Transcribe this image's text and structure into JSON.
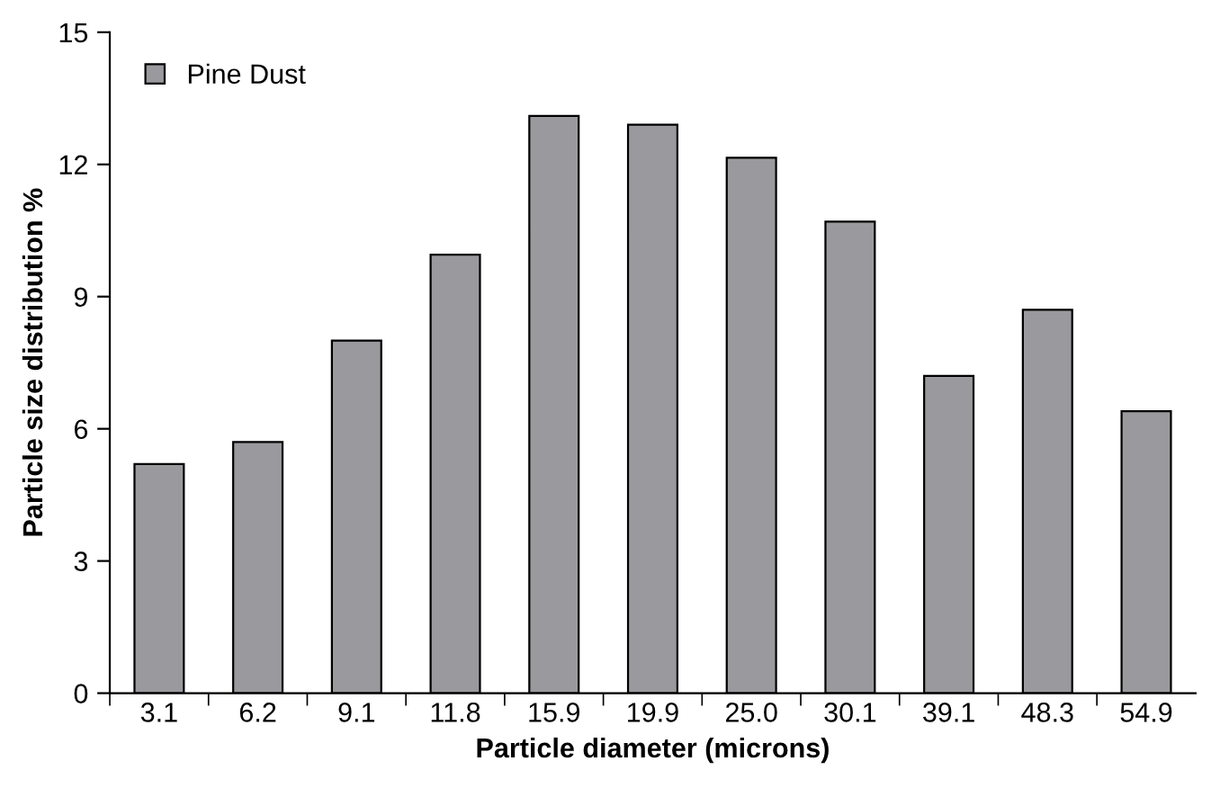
{
  "chart_data": {
    "type": "bar",
    "xlabel": "Particle diameter (microns)",
    "ylabel": "Particle size distribution %",
    "categories": [
      "3.1",
      "6.2",
      "9.1",
      "11.8",
      "15.9",
      "19.9",
      "25.0",
      "30.1",
      "39.1",
      "48.3",
      "54.9"
    ],
    "series": [
      {
        "name": "Pine Dust",
        "color": "#9a9a9e",
        "values": [
          5.2,
          5.7,
          8.0,
          9.95,
          13.1,
          12.9,
          12.15,
          10.7,
          7.2,
          8.7,
          6.4
        ]
      }
    ],
    "ylim": [
      0,
      15
    ],
    "yticks": [
      0,
      3,
      6,
      9,
      12,
      15
    ],
    "grid": false,
    "legend": "top left"
  }
}
